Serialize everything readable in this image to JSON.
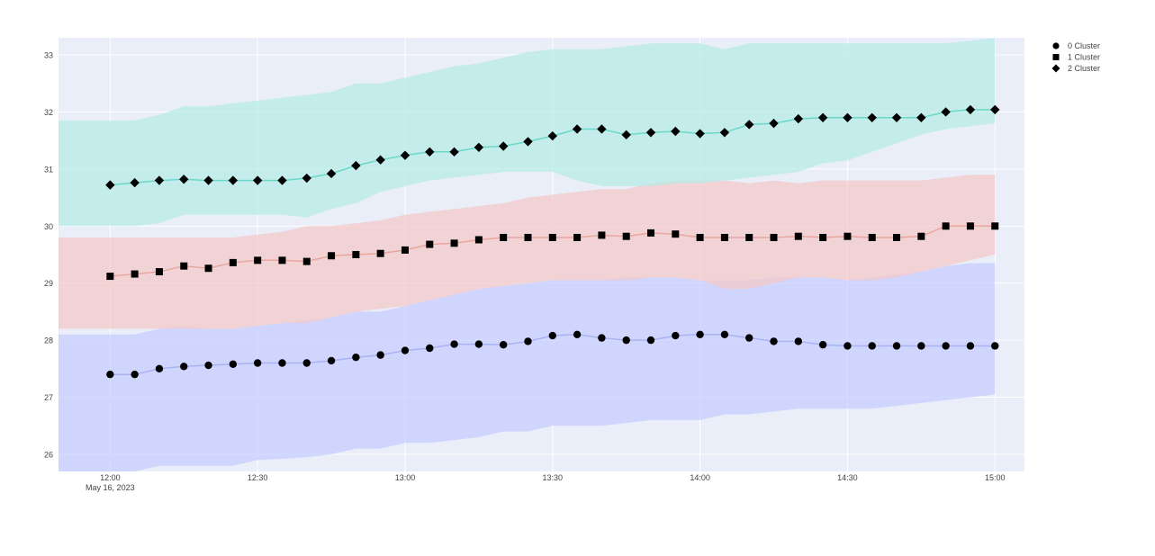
{
  "chart_data": {
    "type": "line",
    "title": "",
    "xlabel": "",
    "ylabel": "",
    "x_start": "2023-05-16 12:00",
    "x_interval_minutes": 5,
    "x_ticks": [
      {
        "minutes": 0,
        "label": "12:00",
        "sublabel": "May 16, 2023"
      },
      {
        "minutes": 30,
        "label": "12:30"
      },
      {
        "minutes": 60,
        "label": "13:00"
      },
      {
        "minutes": 90,
        "label": "13:30"
      },
      {
        "minutes": 120,
        "label": "14:00"
      },
      {
        "minutes": 150,
        "label": "14:30"
      },
      {
        "minutes": 180,
        "label": "15:00"
      }
    ],
    "xlim_minutes": [
      -10.5,
      186
    ],
    "ylim": [
      25.7,
      33.3
    ],
    "y_ticks": [
      26,
      27,
      28,
      29,
      30,
      31,
      32,
      33
    ],
    "grid": true,
    "legend_position": "top-right",
    "plot_bgcolor": "#e9eef9",
    "series": [
      {
        "name": "0 Cluster",
        "marker": "circle",
        "line_color": "#a9b3f2",
        "band_color": "#c6ccff",
        "values": [
          27.4,
          27.4,
          27.5,
          27.54,
          27.56,
          27.58,
          27.6,
          27.6,
          27.6,
          27.64,
          27.7,
          27.74,
          27.82,
          27.86,
          27.93,
          27.93,
          27.92,
          27.98,
          28.08,
          28.1,
          28.04,
          28.0,
          28.0,
          28.08,
          28.1,
          28.1,
          28.04,
          27.98,
          27.98,
          27.92,
          27.9,
          27.9,
          27.9,
          27.9,
          27.9,
          27.9,
          27.9
        ],
        "band_upper": [
          28.1,
          28.1,
          28.2,
          28.25,
          28.2,
          28.2,
          28.25,
          28.3,
          28.35,
          28.4,
          28.5,
          28.5,
          28.6,
          28.7,
          28.8,
          28.9,
          28.95,
          29.0,
          29.05,
          29.05,
          29.05,
          29.1,
          29.1,
          29.1,
          29.05,
          29.05,
          29.05,
          29.1,
          29.1,
          29.1,
          29.05,
          29.1,
          29.15,
          29.2,
          29.3,
          29.35,
          29.35
        ],
        "band_lower": [
          25.7,
          25.7,
          25.8,
          25.8,
          25.8,
          25.8,
          25.9,
          25.92,
          25.95,
          26.0,
          26.1,
          26.1,
          26.2,
          26.2,
          26.25,
          26.3,
          26.4,
          26.4,
          26.5,
          26.5,
          26.5,
          26.55,
          26.6,
          26.6,
          26.6,
          26.7,
          26.7,
          26.75,
          26.8,
          26.8,
          26.8,
          26.8,
          26.85,
          26.9,
          26.95,
          27.0,
          27.05
        ]
      },
      {
        "name": "1 Cluster",
        "marker": "square",
        "line_color": "#e8a79d",
        "band_color": "#f4c9c8",
        "values": [
          29.12,
          29.16,
          29.2,
          29.3,
          29.26,
          29.36,
          29.4,
          29.4,
          29.38,
          29.48,
          29.5,
          29.52,
          29.58,
          29.68,
          29.7,
          29.76,
          29.8,
          29.8,
          29.8,
          29.8,
          29.84,
          29.82,
          29.88,
          29.86,
          29.8,
          29.8,
          29.8,
          29.8,
          29.82,
          29.8,
          29.82,
          29.8,
          29.8,
          29.82,
          30.0,
          30.0,
          30.0
        ],
        "band_upper": [
          29.8,
          29.8,
          29.8,
          29.8,
          29.8,
          29.8,
          29.85,
          29.9,
          30.0,
          30.0,
          30.05,
          30.1,
          30.2,
          30.25,
          30.3,
          30.35,
          30.4,
          30.5,
          30.55,
          30.6,
          30.65,
          30.65,
          30.75,
          30.8,
          30.8,
          30.8,
          30.75,
          30.8,
          30.75,
          30.8,
          30.8,
          30.8,
          30.8,
          30.8,
          30.85,
          30.9,
          30.9
        ],
        "band_lower": [
          28.2,
          28.2,
          28.2,
          28.2,
          28.2,
          28.2,
          28.25,
          28.3,
          28.3,
          28.4,
          28.5,
          28.55,
          28.6,
          28.7,
          28.8,
          28.9,
          28.95,
          29.0,
          29.05,
          29.05,
          29.05,
          29.05,
          29.1,
          29.1,
          29.05,
          28.9,
          28.9,
          29.0,
          29.1,
          29.1,
          29.05,
          29.05,
          29.1,
          29.2,
          29.3,
          29.4,
          29.5
        ]
      },
      {
        "name": "2 Cluster",
        "marker": "diamond",
        "line_color": "#6ad9c9",
        "band_color": "#b5ece4",
        "values": [
          30.72,
          30.76,
          30.8,
          30.82,
          30.8,
          30.8,
          30.8,
          30.8,
          30.84,
          30.92,
          31.06,
          31.16,
          31.24,
          31.3,
          31.3,
          31.38,
          31.4,
          31.48,
          31.58,
          31.7,
          31.7,
          31.6,
          31.64,
          31.66,
          31.62,
          31.64,
          31.78,
          31.8,
          31.88,
          31.9,
          31.9,
          31.9,
          31.9,
          31.9,
          32.0,
          32.04,
          32.04
        ],
        "band_upper": [
          31.85,
          31.85,
          31.95,
          32.1,
          32.1,
          32.15,
          32.2,
          32.25,
          32.3,
          32.35,
          32.5,
          32.5,
          32.6,
          32.7,
          32.8,
          32.85,
          32.95,
          33.05,
          33.1,
          33.1,
          33.1,
          33.15,
          33.2,
          33.2,
          33.2,
          33.1,
          33.2,
          33.2,
          33.2,
          33.2,
          33.2,
          33.2,
          33.2,
          33.2,
          33.2,
          33.25,
          33.3
        ],
        "band_lower": [
          30.0,
          30.0,
          30.05,
          30.2,
          30.2,
          30.2,
          30.2,
          30.2,
          30.15,
          30.3,
          30.4,
          30.6,
          30.7,
          30.8,
          30.85,
          30.9,
          30.95,
          30.95,
          30.95,
          30.8,
          30.7,
          30.7,
          30.7,
          30.75,
          30.75,
          30.8,
          30.85,
          30.9,
          30.95,
          31.1,
          31.15,
          31.3,
          31.45,
          31.6,
          31.7,
          31.75,
          31.8
        ]
      }
    ]
  }
}
